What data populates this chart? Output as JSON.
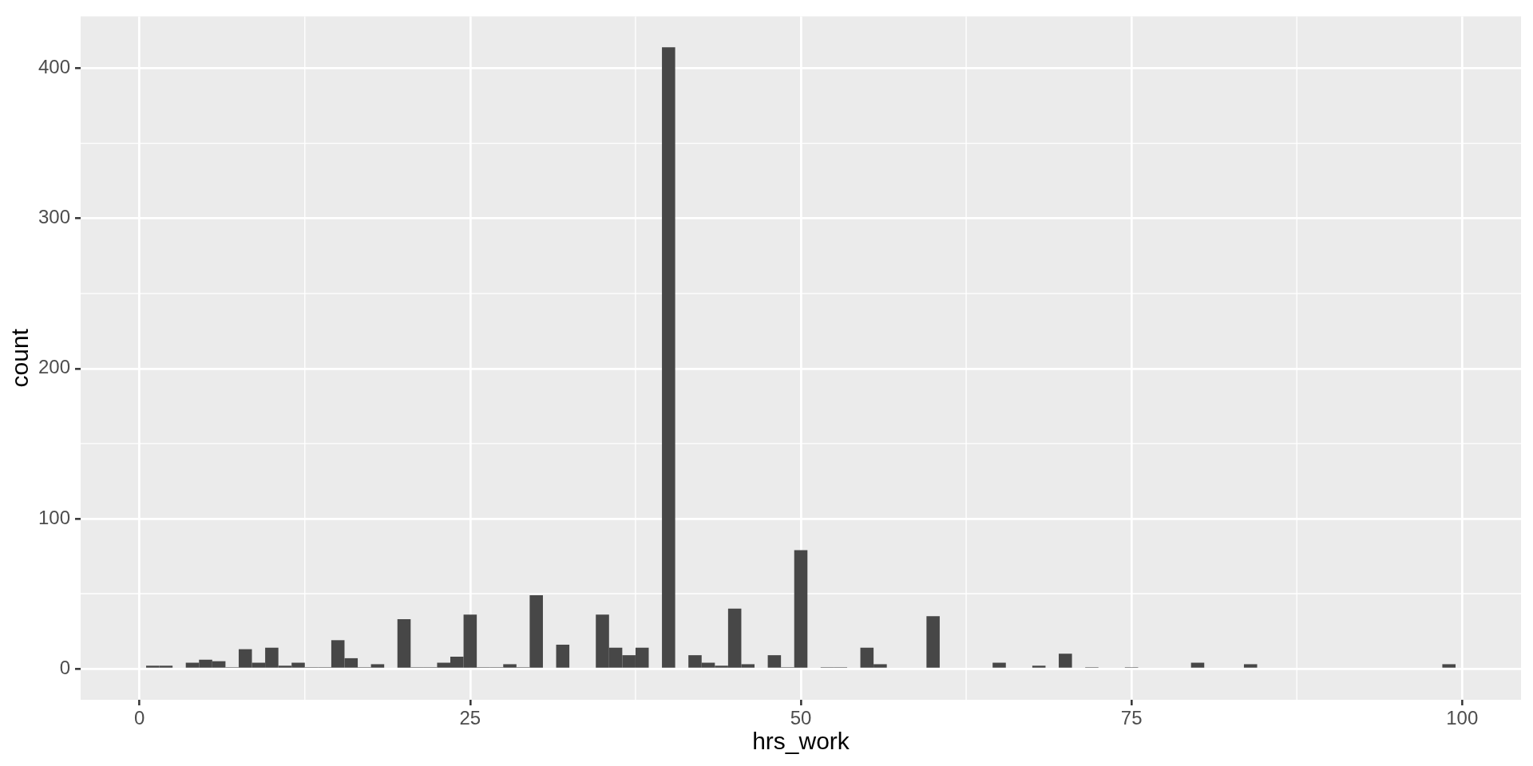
{
  "chart_data": {
    "type": "histogram",
    "xlabel": "hrs_work",
    "ylabel": "count",
    "bins": [
      0.5,
      1.5,
      2.5,
      3.5,
      4.5,
      5.5,
      6.5,
      7.5,
      8.5,
      9.5,
      10.5,
      11.5,
      12.5,
      13.5,
      14.5,
      15.5,
      16.5,
      17.5,
      18.5,
      19.5,
      20.5,
      21.5,
      22.5,
      23.5,
      24.5,
      25.5,
      26.5,
      27.5,
      28.5,
      29.5,
      30.5,
      31.5,
      32.5,
      33.5,
      34.5,
      35.5,
      36.5,
      37.5,
      38.5,
      39.5,
      40.5,
      41.5,
      42.5,
      43.5,
      44.5,
      45.5,
      46.5,
      47.5,
      48.5,
      49.5,
      50.5,
      51.5,
      52.5,
      53.5,
      54.5,
      55.5,
      56.5,
      57.5,
      58.5,
      59.5,
      60.5,
      61.5,
      62.5,
      63.5,
      64.5,
      65.5,
      66.5,
      67.5,
      68.5,
      69.5,
      70.5,
      71.5,
      72.5,
      73.5,
      74.5,
      75.5,
      76.5,
      77.5,
      78.5,
      79.5,
      80.5,
      81.5,
      82.5,
      83.5,
      84.5,
      85.5,
      86.5,
      87.5,
      88.5,
      89.5,
      90.5,
      91.5,
      92.5,
      93.5,
      94.5,
      95.5,
      96.5,
      97.5,
      98.5,
      99.5
    ],
    "values": [
      2,
      2,
      0,
      4,
      6,
      5,
      1,
      13,
      4,
      14,
      2,
      4,
      1,
      1,
      19,
      7,
      1,
      3,
      0,
      33,
      1,
      1,
      4,
      8,
      36,
      1,
      1,
      3,
      1,
      49,
      0,
      16,
      0,
      0,
      36,
      14,
      9,
      14,
      0,
      414,
      0,
      9,
      4,
      2,
      40,
      3,
      0,
      9,
      1,
      79,
      0,
      1,
      1,
      0,
      14,
      3,
      0,
      0,
      0,
      35,
      0,
      0,
      0,
      0,
      4,
      0,
      0,
      2,
      0,
      10,
      0,
      1,
      0,
      0,
      1,
      0,
      0,
      0,
      0,
      4,
      0,
      0,
      0,
      3,
      0,
      0,
      0,
      0,
      0,
      0,
      0,
      0,
      0,
      0,
      0,
      0,
      0,
      0,
      3
    ],
    "color": "#474747",
    "xlim": [
      -4.45,
      104.45
    ],
    "ylim": [
      -20.7,
      434.7
    ],
    "xticks": [
      0,
      25,
      50,
      75,
      100
    ],
    "yticks": [
      0,
      100,
      200,
      300,
      400
    ],
    "grid": true
  }
}
